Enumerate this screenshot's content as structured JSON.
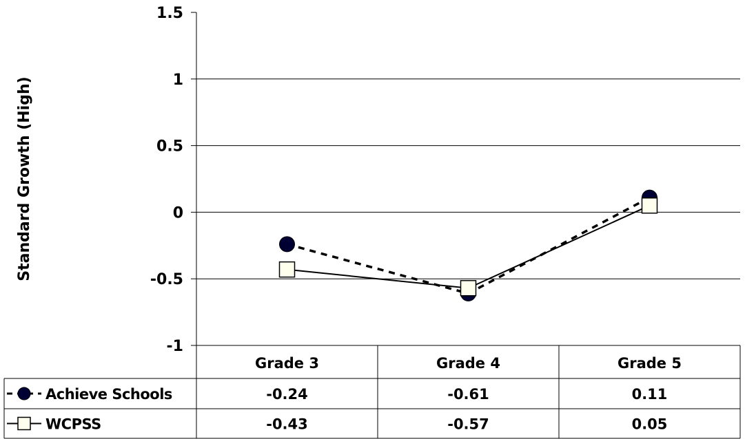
{
  "chart_data": {
    "type": "line",
    "categories": [
      "Grade 3",
      "Grade 4",
      "Grade 5"
    ],
    "series": [
      {
        "name": "Achieve Schools",
        "values": [
          -0.24,
          -0.61,
          0.11
        ],
        "value_labels": [
          "-0.24",
          "-0.61",
          "0.11"
        ],
        "line_style": "dashed",
        "marker": "filled-circle",
        "color": "#000000"
      },
      {
        "name": "WCPSS",
        "values": [
          -0.43,
          -0.57,
          0.05
        ],
        "value_labels": [
          "-0.43",
          "-0.57",
          "0.05"
        ],
        "line_style": "solid",
        "marker": "open-square",
        "color": "#000000"
      }
    ],
    "title": "",
    "xlabel": "",
    "ylabel": "Standard Growth (High)",
    "ylim": [
      -1,
      1.5
    ],
    "yticks": [
      1.5,
      1,
      0.5,
      0,
      -0.5,
      -1
    ],
    "ytick_labels": [
      "1.5",
      "1",
      "0.5",
      "0",
      "-0.5",
      "-1"
    ],
    "grid": true,
    "legend": "data-table",
    "marker_fill": "#000033",
    "square_fill": "#ffffee"
  }
}
